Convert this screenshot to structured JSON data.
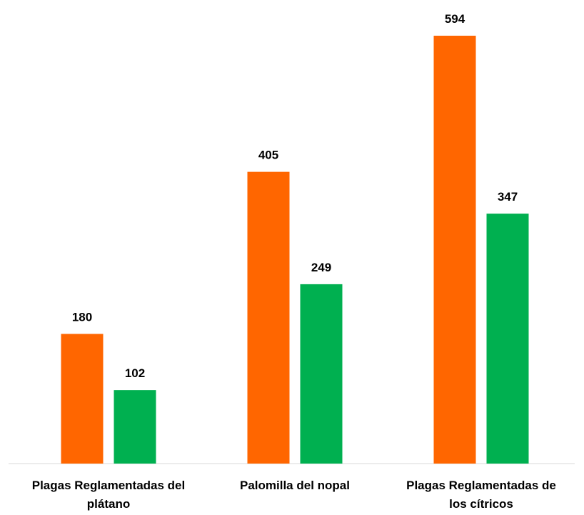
{
  "chart_data": {
    "type": "bar",
    "title": "",
    "xlabel": "",
    "ylabel": "",
    "categories": [
      [
        "Plagas Reglamentadas del",
        "plátano"
      ],
      [
        "Palomilla del nopal"
      ],
      [
        "Plagas Reglamentadas de",
        "los cítricos"
      ]
    ],
    "series": [
      {
        "color": "#ff6600",
        "values": [
          180,
          405,
          594
        ]
      },
      {
        "color": "#00b050",
        "values": [
          102,
          249,
          347
        ]
      }
    ],
    "ylim": [
      0,
      594
    ],
    "grid": false,
    "legend": "none",
    "data_labels": true
  }
}
